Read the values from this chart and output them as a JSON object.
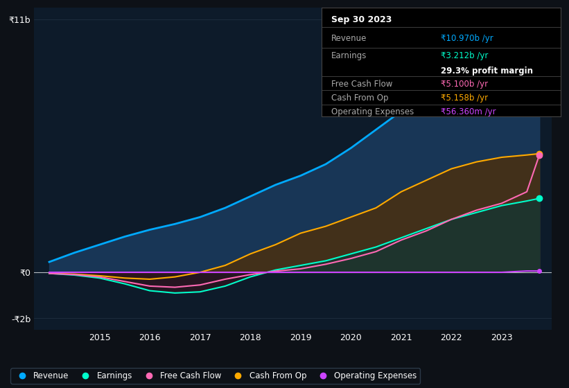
{
  "bg_color": "#0d1117",
  "plot_bg_color": "#0d1b2a",
  "years": [
    2014,
    2014.5,
    2015,
    2015.5,
    2016,
    2016.5,
    2017,
    2017.5,
    2018,
    2018.5,
    2019,
    2019.5,
    2020,
    2020.5,
    2021,
    2021.5,
    2022,
    2022.5,
    2023,
    2023.5,
    2023.75
  ],
  "revenue": [
    0.45,
    0.85,
    1.2,
    1.55,
    1.85,
    2.1,
    2.4,
    2.8,
    3.3,
    3.8,
    4.2,
    4.7,
    5.4,
    6.2,
    7.0,
    7.8,
    8.5,
    9.2,
    9.8,
    10.5,
    10.97
  ],
  "earnings": [
    -0.05,
    -0.12,
    -0.25,
    -0.5,
    -0.8,
    -0.9,
    -0.85,
    -0.6,
    -0.2,
    0.1,
    0.3,
    0.5,
    0.8,
    1.1,
    1.5,
    1.9,
    2.3,
    2.6,
    2.9,
    3.1,
    3.212
  ],
  "free_cash_flow": [
    -0.05,
    -0.1,
    -0.2,
    -0.4,
    -0.6,
    -0.65,
    -0.55,
    -0.3,
    -0.1,
    0.05,
    0.15,
    0.35,
    0.6,
    0.9,
    1.4,
    1.8,
    2.3,
    2.7,
    3.0,
    3.5,
    5.1
  ],
  "cash_from_op": [
    -0.05,
    -0.08,
    -0.15,
    -0.25,
    -0.3,
    -0.2,
    0.0,
    0.3,
    0.8,
    1.2,
    1.7,
    2.0,
    2.4,
    2.8,
    3.5,
    4.0,
    4.5,
    4.8,
    5.0,
    5.1,
    5.158
  ],
  "operating_expenses": [
    0.0,
    0.0,
    0.0,
    0.0,
    0.0,
    0.0,
    0.0,
    0.0,
    0.0,
    0.0,
    0.0,
    0.0,
    0.0,
    0.0,
    0.0,
    0.0,
    0.0,
    0.0,
    0.0,
    0.057,
    0.05636
  ],
  "revenue_color": "#00aaff",
  "earnings_color": "#00ffcc",
  "free_cash_flow_color": "#ff69b4",
  "cash_from_op_color": "#ffaa00",
  "operating_expenses_color": "#cc44ff",
  "yticks": [
    -2,
    0,
    11
  ],
  "ytick_labels": [
    "-₹2b",
    "₹0",
    "₹11b"
  ],
  "xtick_labels": [
    "2015",
    "2016",
    "2017",
    "2018",
    "2019",
    "2020",
    "2021",
    "2022",
    "2023"
  ],
  "xlim": [
    2013.7,
    2024.0
  ],
  "ylim": [
    -2.5,
    11.5
  ],
  "tooltip_date": "Sep 30 2023",
  "tooltip_revenue": "₹10.970b /yr",
  "tooltip_earnings": "₹3.212b /yr",
  "tooltip_margin": "29.3% profit margin",
  "tooltip_fcf": "₹5.100b /yr",
  "tooltip_cashop": "₹5.158b /yr",
  "tooltip_opex": "₹56.360m /yr",
  "legend_items": [
    "Revenue",
    "Earnings",
    "Free Cash Flow",
    "Cash From Op",
    "Operating Expenses"
  ],
  "legend_colors": [
    "#00aaff",
    "#00ffcc",
    "#ff69b4",
    "#ffaa00",
    "#cc44ff"
  ]
}
